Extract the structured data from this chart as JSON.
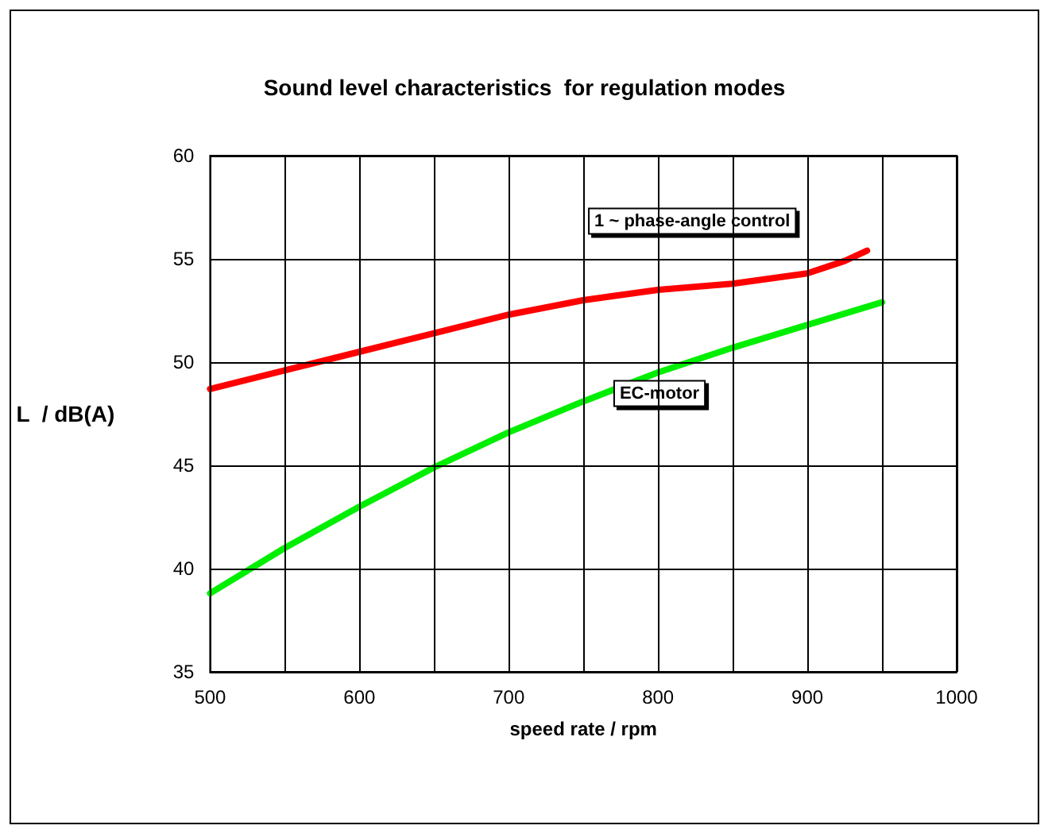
{
  "chart_data": {
    "type": "line",
    "title": "Sound level characteristics  for regulation modes",
    "xlabel": "speed rate / rpm",
    "ylabel": "L  / dB(A)",
    "series": [
      {
        "name": "1 ~ phase-angle control",
        "color": "#ff0000",
        "x": [
          500,
          550,
          600,
          650,
          700,
          750,
          800,
          850,
          900,
          925,
          940
        ],
        "values": [
          48.7,
          49.6,
          50.5,
          51.4,
          52.3,
          53.0,
          53.5,
          53.8,
          54.3,
          54.9,
          55.4
        ]
      },
      {
        "name": "EC-motor",
        "color": "#00ee00",
        "x": [
          500,
          550,
          600,
          650,
          700,
          750,
          800,
          850,
          900,
          950
        ],
        "values": [
          38.8,
          41.0,
          43.0,
          44.9,
          46.6,
          48.1,
          49.5,
          50.7,
          51.8,
          52.9
        ]
      }
    ],
    "xlim": [
      500,
      1000
    ],
    "xticks": [
      500,
      {
        "value": 550,
        "label": null
      },
      600,
      {
        "value": 650,
        "label": null
      },
      700,
      {
        "value": 750,
        "label": null
      },
      800,
      {
        "value": 850,
        "label": null
      },
      900,
      {
        "value": 950,
        "label": null
      },
      {
        "value": 1000,
        "label": "1000"
      }
    ],
    "ylim": [
      35,
      60
    ],
    "yticks": [
      35,
      40,
      45,
      50,
      55,
      60
    ],
    "grid": true,
    "legend": false,
    "marker": "none",
    "line_style": "solid"
  }
}
